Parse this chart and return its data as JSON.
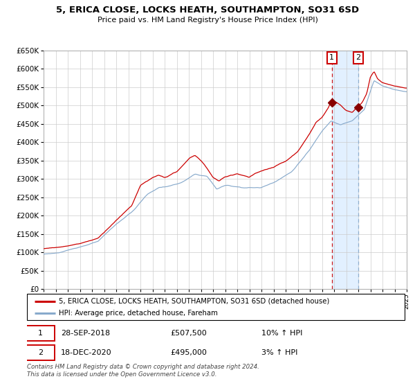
{
  "title_line1": "5, ERICA CLOSE, LOCKS HEATH, SOUTHAMPTON, SO31 6SD",
  "title_line2": "Price paid vs. HM Land Registry's House Price Index (HPI)",
  "legend_line1": "5, ERICA CLOSE, LOCKS HEATH, SOUTHAMPTON, SO31 6SD (detached house)",
  "legend_line2": "HPI: Average price, detached house, Fareham",
  "annotation1_label": "1",
  "annotation1_date": "28-SEP-2018",
  "annotation1_price": "£507,500",
  "annotation1_hpi": "10% ↑ HPI",
  "annotation2_label": "2",
  "annotation2_date": "18-DEC-2020",
  "annotation2_price": "£495,000",
  "annotation2_hpi": "3% ↑ HPI",
  "footer": "Contains HM Land Registry data © Crown copyright and database right 2024.\nThis data is licensed under the Open Government Licence v3.0.",
  "red_color": "#cc0000",
  "blue_color": "#88aacc",
  "marker_color": "#880000",
  "background_color": "#ffffff",
  "grid_color": "#cccccc",
  "annotation_box_color": "#cc0000",
  "shade_color": "#ddeeff",
  "ylim": [
    0,
    650000
  ],
  "yticks": [
    0,
    50000,
    100000,
    150000,
    200000,
    250000,
    300000,
    350000,
    400000,
    450000,
    500000,
    550000,
    600000,
    650000
  ],
  "year_start": 1995,
  "year_end": 2025,
  "sale1_year": 2018.75,
  "sale2_year": 2020.97,
  "sale1_price": 507500,
  "sale2_price": 495000
}
